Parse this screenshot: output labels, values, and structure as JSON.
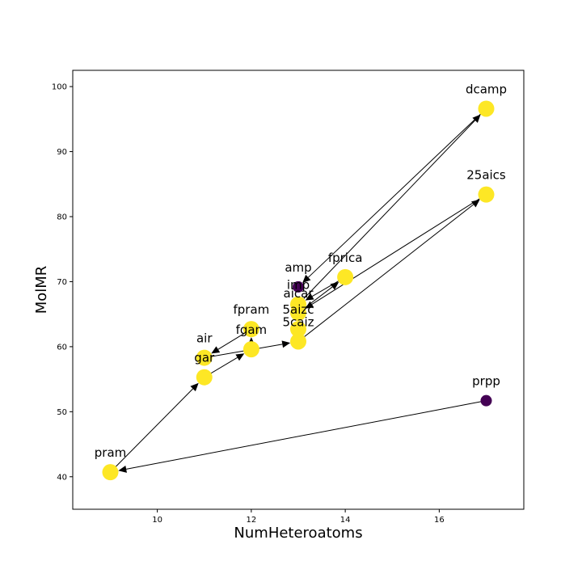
{
  "chart_data": {
    "type": "scatter",
    "title": "",
    "xlabel": "NumHeteroatoms",
    "ylabel": "MolMR",
    "xlim": [
      8.2,
      17.8
    ],
    "ylim": [
      35,
      102.5
    ],
    "xticks": [
      10,
      12,
      14,
      16
    ],
    "yticks": [
      40,
      50,
      60,
      70,
      80,
      90,
      100
    ],
    "grid": false,
    "colors": {
      "yellow": "#fde725",
      "purple": "#440154",
      "edge": "#000000"
    },
    "nodes": [
      {
        "id": "pram",
        "label": "pram",
        "x": 9,
        "y": 40.7,
        "color": "yellow"
      },
      {
        "id": "gar",
        "label": "gar",
        "x": 11,
        "y": 55.3,
        "color": "yellow"
      },
      {
        "id": "air",
        "label": "air",
        "x": 11,
        "y": 58.3,
        "color": "yellow"
      },
      {
        "id": "fgam",
        "label": "fgam",
        "x": 12,
        "y": 59.6,
        "color": "yellow"
      },
      {
        "id": "fpram",
        "label": "fpram",
        "x": 12,
        "y": 62.7,
        "color": "yellow"
      },
      {
        "id": "5caiz",
        "label": "5caiz",
        "x": 13,
        "y": 60.8,
        "color": "yellow"
      },
      {
        "id": "5aizc",
        "label": "5aizc",
        "x": 13,
        "y": 62.7,
        "color": "yellow"
      },
      {
        "id": "aicar",
        "label": "aicar",
        "x": 13,
        "y": 65.2,
        "color": "yellow"
      },
      {
        "id": "imp",
        "label": "imp",
        "x": 13,
        "y": 66.5,
        "color": "yellow"
      },
      {
        "id": "amp",
        "label": "amp",
        "x": 13,
        "y": 69.2,
        "color": "purple"
      },
      {
        "id": "fprica",
        "label": "fprica",
        "x": 14,
        "y": 70.7,
        "color": "yellow"
      },
      {
        "id": "dcamp",
        "label": "dcamp",
        "x": 17,
        "y": 96.6,
        "color": "yellow"
      },
      {
        "id": "25aics",
        "label": "25aics",
        "x": 17,
        "y": 83.4,
        "color": "yellow"
      },
      {
        "id": "prpp",
        "label": "prpp",
        "x": 17,
        "y": 51.7,
        "color": "purple"
      }
    ],
    "edges": [
      {
        "from": "prpp",
        "to": "pram"
      },
      {
        "from": "pram",
        "to": "gar"
      },
      {
        "from": "gar",
        "to": "fgam"
      },
      {
        "from": "fgam",
        "to": "fpram"
      },
      {
        "from": "fpram",
        "to": "air"
      },
      {
        "from": "air",
        "to": "5caiz"
      },
      {
        "from": "5caiz",
        "to": "25aics"
      },
      {
        "from": "25aics",
        "to": "aicar"
      },
      {
        "from": "aicar",
        "to": "fprica"
      },
      {
        "from": "fprica",
        "to": "imp"
      },
      {
        "from": "imp",
        "to": "dcamp"
      },
      {
        "from": "dcamp",
        "to": "amp"
      }
    ]
  }
}
